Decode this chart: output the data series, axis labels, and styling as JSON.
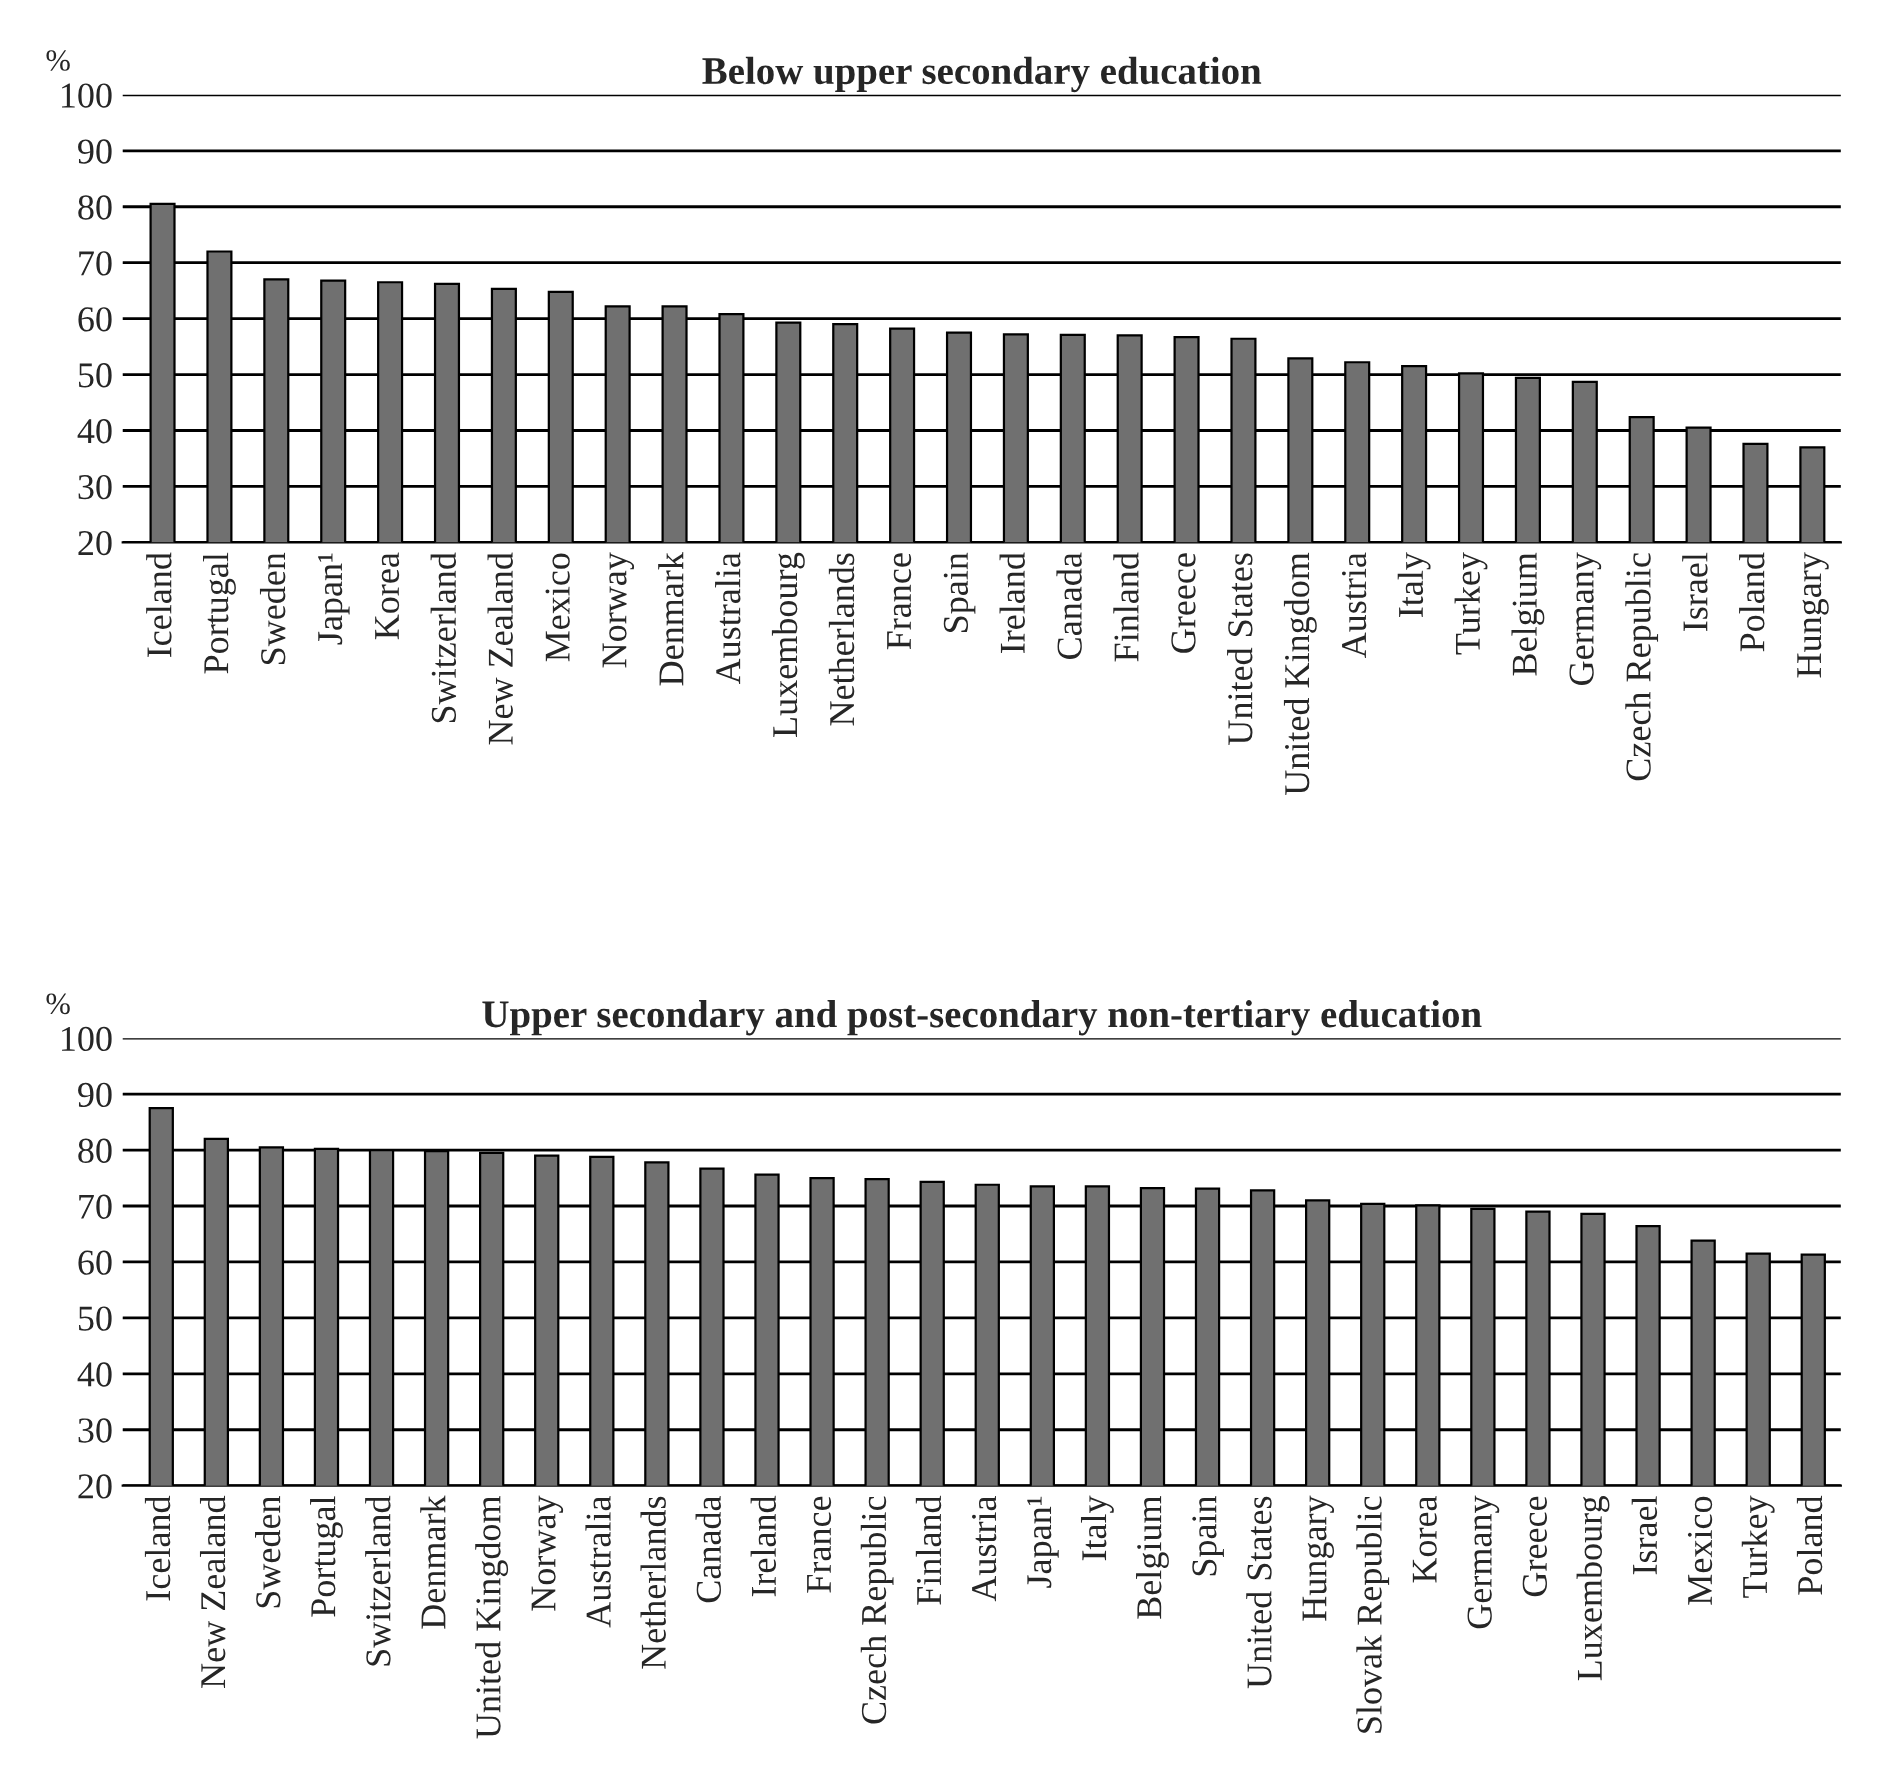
{
  "chart_data": [
    {
      "type": "bar",
      "title": "Below upper secondary education",
      "ylabel": "%",
      "categories": [
        "Iceland",
        "Portugal",
        "Sweden",
        "Japan¹",
        "Korea",
        "Switzerland",
        "New Zealand",
        "Mexico",
        "Norway",
        "Denmark",
        "Australia",
        "Luxembourg",
        "Netherlands",
        "France",
        "Spain",
        "Ireland",
        "Canada",
        "Finland",
        "Greece",
        "United States",
        "United Kingdom",
        "Austria",
        "Italy",
        "Turkey",
        "Belgium",
        "Germany",
        "Czech Republic",
        "Israel",
        "Poland",
        "Hungary"
      ],
      "values": [
        80.5,
        72,
        67,
        66.8,
        66.5,
        66.2,
        65.3,
        64.8,
        62.2,
        62.2,
        60.8,
        59.3,
        59,
        58.2,
        57.5,
        57.2,
        57.1,
        57,
        56.7,
        56.4,
        52.9,
        52.2,
        51.5,
        50.2,
        49.4,
        48.7,
        42.4,
        40.5,
        37.6,
        37
      ],
      "color": "#707070",
      "ylim": [
        20,
        100
      ],
      "yticks": [
        20,
        30,
        40,
        50,
        60,
        70,
        80,
        90,
        100
      ],
      "grid": "y",
      "legend": false
    },
    {
      "type": "bar",
      "title": "Upper secondary and post-secondary non-tertiary education",
      "ylabel": "%",
      "categories": [
        "Iceland",
        "New Zealand",
        "Sweden",
        "Portugal",
        "Switzerland",
        "Denmark",
        "United Kingdom",
        "Norway",
        "Australia",
        "Netherlands",
        "Canada",
        "Ireland",
        "France",
        "Czech Republic",
        "Finland",
        "Austria",
        "Japan¹",
        "Italy",
        "Belgium",
        "Spain",
        "United States",
        "Hungary",
        "Slovak Republic",
        "Korea",
        "Germany",
        "Greece",
        "Luxembourg",
        "Israel",
        "Mexico",
        "Turkey",
        "Poland"
      ],
      "values": [
        87.5,
        82,
        80.5,
        80.2,
        80,
        79.8,
        79.5,
        79,
        78.8,
        77.8,
        76.7,
        75.6,
        75,
        74.8,
        74.3,
        73.8,
        73.5,
        73.5,
        73.2,
        73.1,
        72.8,
        71,
        70.4,
        70.1,
        69.5,
        69,
        68.6,
        66.4,
        63.8,
        61.5,
        61.3
      ],
      "color": "#707070",
      "ylim": [
        20,
        100
      ],
      "yticks": [
        20,
        30,
        40,
        50,
        60,
        70,
        80,
        90,
        100
      ],
      "grid": "y",
      "legend": false
    }
  ]
}
